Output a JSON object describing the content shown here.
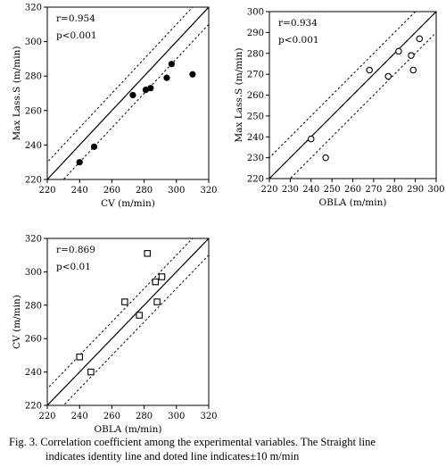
{
  "figure": {
    "caption_line1": "Fig. 3.  Correlation coefficient among the experimental variables. The Straight line",
    "caption_line2": "indicates identity line and doted line indicates±10 m/min"
  },
  "chart_data": [
    {
      "type": "scatter",
      "marker": "filled-circle",
      "xlabel": "CV  (m/min)",
      "ylabel": "Max Lass.S  (m/min)",
      "xlim": [
        220,
        320
      ],
      "ylim": [
        220,
        320
      ],
      "xticks": [
        220,
        240,
        260,
        280,
        300,
        320
      ],
      "yticks": [
        220,
        240,
        260,
        280,
        300,
        320
      ],
      "tick_labels_x": [
        "220",
        "240",
        "260",
        "280",
        "300",
        "320"
      ],
      "tick_labels_y": [
        "220",
        "240",
        "260",
        "280",
        "300",
        "320"
      ],
      "stat_r": "r=0.954",
      "stat_p": "p<0.001",
      "identity_line": true,
      "band_offset": 10,
      "points": [
        {
          "x": 240,
          "y": 230
        },
        {
          "x": 249,
          "y": 239
        },
        {
          "x": 273,
          "y": 269
        },
        {
          "x": 281,
          "y": 272
        },
        {
          "x": 284,
          "y": 273
        },
        {
          "x": 294,
          "y": 279
        },
        {
          "x": 297,
          "y": 287
        },
        {
          "x": 310,
          "y": 281
        }
      ]
    },
    {
      "type": "scatter",
      "marker": "open-circle",
      "xlabel": "OBLA  (m/min)",
      "ylabel": "Max Lass.S  (m/min)",
      "xlim": [
        220,
        300
      ],
      "ylim": [
        220,
        300
      ],
      "xticks": [
        220,
        230,
        240,
        250,
        260,
        270,
        280,
        290,
        300
      ],
      "yticks": [
        220,
        230,
        240,
        250,
        260,
        270,
        280,
        290,
        300
      ],
      "tick_labels_x": [
        "220",
        "230",
        "240",
        "250",
        "260",
        "270",
        "280",
        "290",
        "300"
      ],
      "tick_labels_y": [
        "220",
        "230",
        "240",
        "250",
        "260",
        "270",
        "280",
        "290",
        "300"
      ],
      "stat_r": "r=0.934",
      "stat_p": "p<0.001",
      "identity_line": true,
      "band_offset": 10,
      "points": [
        {
          "x": 240,
          "y": 239
        },
        {
          "x": 247,
          "y": 230
        },
        {
          "x": 268,
          "y": 272
        },
        {
          "x": 277,
          "y": 269
        },
        {
          "x": 282,
          "y": 281
        },
        {
          "x": 288,
          "y": 279
        },
        {
          "x": 289,
          "y": 272
        },
        {
          "x": 292,
          "y": 287
        }
      ]
    },
    {
      "type": "scatter",
      "marker": "open-square",
      "xlabel": "OBLA  (m/min)",
      "ylabel": "CV  (m/min)",
      "xlim": [
        220,
        320
      ],
      "ylim": [
        220,
        320
      ],
      "xticks": [
        220,
        240,
        260,
        280,
        300,
        320
      ],
      "yticks": [
        220,
        240,
        260,
        280,
        300,
        320
      ],
      "tick_labels_x": [
        "220",
        "240",
        "260",
        "280",
        "300",
        "320"
      ],
      "tick_labels_y": [
        "220",
        "240",
        "260",
        "280",
        "300",
        "320"
      ],
      "stat_r": "r=0.869",
      "stat_p": "p<0.01",
      "identity_line": true,
      "band_offset": 10,
      "points": [
        {
          "x": 240,
          "y": 249
        },
        {
          "x": 247,
          "y": 240
        },
        {
          "x": 268,
          "y": 282
        },
        {
          "x": 277,
          "y": 274
        },
        {
          "x": 282,
          "y": 311
        },
        {
          "x": 287,
          "y": 294
        },
        {
          "x": 288,
          "y": 282
        },
        {
          "x": 291,
          "y": 297
        }
      ]
    }
  ]
}
